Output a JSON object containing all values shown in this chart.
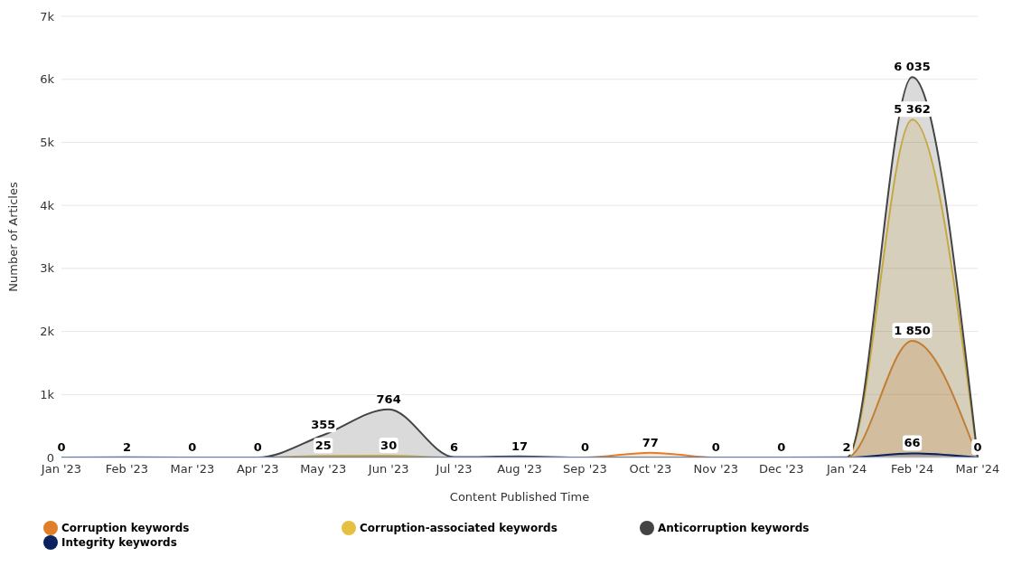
{
  "chart_data": {
    "type": "area",
    "xlabel": "Content Published Time",
    "ylabel": "Number of Articles",
    "categories": [
      "Jan '23",
      "Feb '23",
      "Mar '23",
      "Apr '23",
      "May '23",
      "Jun '23",
      "Jul '23",
      "Aug '23",
      "Sep '23",
      "Oct '23",
      "Nov '23",
      "Dec '23",
      "Jan '24",
      "Feb '24",
      "Mar '24"
    ],
    "ylim": [
      0,
      7000
    ],
    "yticks": [
      {
        "value": 0,
        "label": "0"
      },
      {
        "value": 1000,
        "label": "1k"
      },
      {
        "value": 2000,
        "label": "2k"
      },
      {
        "value": 3000,
        "label": "3k"
      },
      {
        "value": 4000,
        "label": "4k"
      },
      {
        "value": 5000,
        "label": "5k"
      },
      {
        "value": 6000,
        "label": "6k"
      },
      {
        "value": 7000,
        "label": "7k"
      }
    ],
    "grid": "y",
    "legend": "bottom",
    "marker": "none",
    "line_style": "solid",
    "series": [
      {
        "name": "Corruption keywords",
        "color": "#e07f2a",
        "values": [
          0,
          0,
          0,
          0,
          0,
          0,
          0,
          0,
          0,
          77,
          0,
          0,
          0,
          1850,
          0
        ],
        "value_labels": [
          null,
          null,
          null,
          null,
          null,
          null,
          null,
          null,
          null,
          "77",
          null,
          null,
          null,
          "1 850",
          null
        ]
      },
      {
        "name": "Corruption-associated keywords",
        "color": "#e6c040",
        "values": [
          0,
          0,
          0,
          0,
          25,
          30,
          0,
          0,
          0,
          0,
          0,
          0,
          0,
          5362,
          0
        ],
        "value_labels": [
          null,
          null,
          null,
          null,
          "25",
          "30",
          null,
          null,
          null,
          null,
          null,
          null,
          null,
          "5 362",
          null
        ]
      },
      {
        "name": "Anticorruption keywords",
        "color": "#444444",
        "values": [
          0,
          2,
          0,
          0,
          355,
          764,
          6,
          17,
          0,
          0,
          0,
          0,
          2,
          6035,
          0
        ],
        "value_labels": [
          "0",
          "2",
          "0",
          "0",
          "355",
          "764",
          "6",
          "17",
          "0",
          null,
          "0",
          "0",
          "2",
          "6 035",
          "0"
        ]
      },
      {
        "name": "Integrity keywords",
        "color": "#0b2260",
        "values": [
          0,
          0,
          0,
          0,
          0,
          0,
          0,
          0,
          0,
          0,
          0,
          0,
          0,
          66,
          0
        ],
        "value_labels": [
          null,
          null,
          null,
          null,
          null,
          null,
          null,
          null,
          null,
          null,
          null,
          null,
          null,
          "66",
          null
        ]
      }
    ]
  }
}
